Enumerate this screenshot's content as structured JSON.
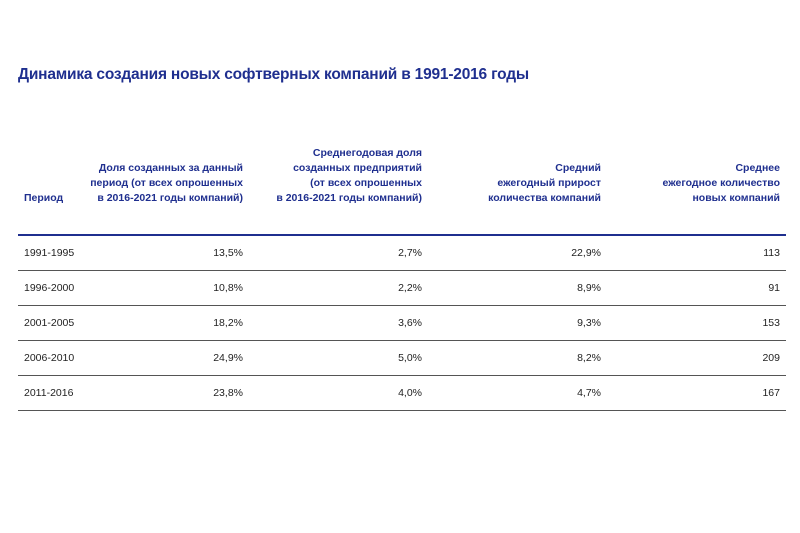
{
  "title": "Динамика создания новых софтверных компаний в 1991-2016 годы",
  "table": {
    "headers": [
      "Период",
      "Доля созданных за данный\nпериод (от всех опрошенных\nв 2016-2021 годы компаний)",
      "Среднегодовая доля\nсозданных  предприятий\n(от всех опрошенных\nв 2016-2021 годы компаний)",
      "Средний\nежегодный прирост\nколичества компаний",
      "Среднее\nежегодное количество\nновых компаний"
    ],
    "rows": [
      [
        "1991-1995",
        "13,5%",
        "2,7%",
        "22,9%",
        "113"
      ],
      [
        "1996-2000",
        "10,8%",
        "2,2%",
        "8,9%",
        "91"
      ],
      [
        "2001-2005",
        "18,2%",
        "3,6%",
        "9,3%",
        "153"
      ],
      [
        "2006-2010",
        "24,9%",
        "5,0%",
        "8,2%",
        "209"
      ],
      [
        "2011-2016",
        "23,8%",
        "4,0%",
        "4,7%",
        "167"
      ]
    ]
  }
}
